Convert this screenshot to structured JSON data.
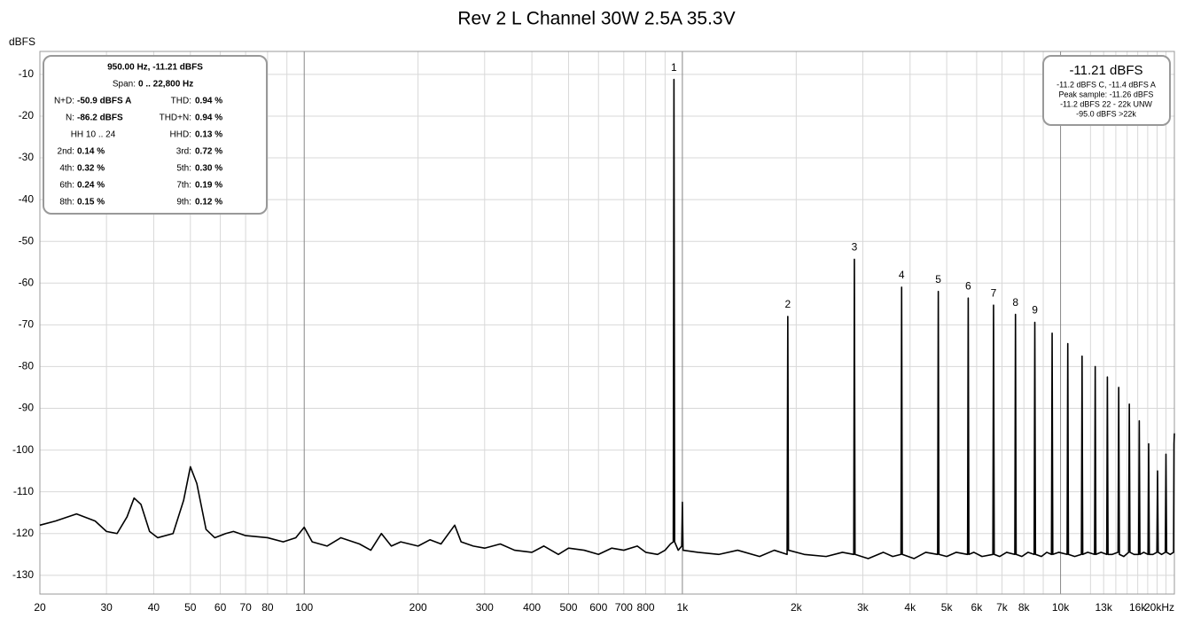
{
  "chart_data": {
    "type": "line",
    "title": "Rev 2 L Channel 30W 2.5A 35.3V",
    "y_label": "dBFS",
    "log_x": true,
    "grid": true,
    "color": "#000000",
    "xlim": [
      20,
      20000
    ],
    "ylim": [
      -134.5,
      -4.5
    ],
    "yticks": [
      -10,
      -20,
      -30,
      -40,
      -50,
      -60,
      -70,
      -80,
      -90,
      -100,
      -110,
      -120,
      -130
    ],
    "xticks": [
      20,
      30,
      40,
      50,
      60,
      70,
      80,
      100,
      200,
      300,
      400,
      500,
      600,
      700,
      800,
      {
        "value": 1000,
        "label": "1k"
      },
      {
        "value": 2000,
        "label": "2k"
      },
      {
        "value": 3000,
        "label": "3k"
      },
      {
        "value": 4000,
        "label": "4k"
      },
      {
        "value": 5000,
        "label": "5k"
      },
      {
        "value": 6000,
        "label": "6k"
      },
      {
        "value": 7000,
        "label": "7k"
      },
      {
        "value": 8000,
        "label": "8k"
      },
      {
        "value": 10000,
        "label": "10k"
      },
      {
        "value": 13000,
        "label": "13k"
      },
      {
        "value": 16000,
        "label": "16k"
      },
      {
        "value": 20000,
        "label": "20kHz"
      }
    ],
    "xminor": [
      90,
      900,
      9000,
      12000,
      14000,
      15000,
      17000,
      18000,
      19000
    ],
    "x": [
      20,
      22,
      25,
      28,
      30,
      32,
      34,
      35.5,
      37,
      39,
      41,
      45,
      48,
      50,
      52,
      55,
      58,
      62,
      65,
      70,
      80,
      88,
      95,
      100,
      105,
      115,
      125,
      140,
      150,
      160,
      170,
      180,
      200,
      215,
      230,
      250,
      260,
      280,
      300,
      330,
      360,
      400,
      430,
      470,
      500,
      550,
      600,
      650,
      700,
      760,
      800,
      860,
      900,
      930,
      946,
      950,
      954,
      975,
      996,
      1000,
      1004,
      1100,
      1250,
      1400,
      1600,
      1750,
      1892,
      1900,
      1908,
      2100,
      2400,
      2650,
      2839,
      2850,
      2861,
      3100,
      3400,
      3600,
      3785,
      3800,
      3815,
      4100,
      4400,
      4731,
      4750,
      4769,
      5000,
      5300,
      5677,
      5700,
      5723,
      5900,
      6200,
      6623,
      6650,
      6677,
      6900,
      7200,
      7570,
      7600,
      7630,
      7900,
      8200,
      8516,
      8550,
      8584,
      8900,
      9200,
      9462,
      9500,
      9538,
      9900,
      10408,
      10450,
      10492,
      10900,
      11354,
      11400,
      11446,
      11800,
      12300,
      12350,
      12400,
      12800,
      13247,
      13300,
      13353,
      13700,
      14193,
      14250,
      14307,
      14700,
      15139,
      15200,
      15261,
      15650,
      16085,
      16150,
      16215,
      16600,
      17032,
      17100,
      17168,
      17550,
      17978,
      18050,
      18122,
      18500,
      18924,
      19000,
      19076,
      19500,
      19900,
      19950,
      20000
    ],
    "values": [
      -118,
      -117,
      -115.3,
      -117,
      -119.5,
      -120,
      -116,
      -111.5,
      -113,
      -119.5,
      -121,
      -120,
      -112,
      -104,
      -108,
      -119,
      -121,
      -120,
      -119.5,
      -120.5,
      -121,
      -122,
      -121,
      -118.5,
      -122,
      -123,
      -121,
      -122.5,
      -124,
      -120,
      -123,
      -122,
      -123,
      -121.5,
      -122.5,
      -118,
      -122,
      -123,
      -123.5,
      -122.5,
      -124,
      -124.5,
      -123,
      -125,
      -123.5,
      -124,
      -125,
      -123.5,
      -124,
      -123,
      -124.5,
      -125,
      -124,
      -122.5,
      -122,
      -11.21,
      -122,
      -124,
      -123,
      -112.5,
      -124,
      -124.5,
      -125,
      -124,
      -125.5,
      -124,
      -125,
      -68,
      -124,
      -125,
      -125.5,
      -124.5,
      -125,
      -54.3,
      -125,
      -126,
      -124.5,
      -125.5,
      -125,
      -61,
      -125,
      -126,
      -124.5,
      -125,
      -62,
      -125,
      -125.5,
      -124.5,
      -125,
      -63.6,
      -125,
      -124.5,
      -125.5,
      -125,
      -65.3,
      -125,
      -125.5,
      -124.5,
      -125,
      -67.5,
      -125,
      -125.5,
      -124.5,
      -125,
      -69.4,
      -125,
      -125.5,
      -124.5,
      -125,
      -72,
      -125,
      -124.5,
      -125,
      -74.5,
      -125,
      -125.5,
      -125,
      -77.5,
      -125,
      -124.5,
      -125,
      -80,
      -125,
      -124.5,
      -125,
      -82.5,
      -125,
      -125,
      -124.5,
      -85,
      -125,
      -125.5,
      -124.5,
      -89,
      -124.5,
      -125,
      -125,
      -93,
      -125,
      -124.5,
      -125,
      -98.5,
      -125,
      -125,
      -124.5,
      -105,
      -124.5,
      -125,
      -124.5,
      -101,
      -124.5,
      -125,
      -124.5,
      -98.5,
      -96
    ],
    "annotations": [
      {
        "text": "1",
        "x": 950,
        "y": -11.21
      },
      {
        "text": "2",
        "x": 1900,
        "y": -68
      },
      {
        "text": "3",
        "x": 2850,
        "y": -54.3
      },
      {
        "text": "4",
        "x": 3800,
        "y": -61
      },
      {
        "text": "5",
        "x": 4750,
        "y": -62
      },
      {
        "text": "6",
        "x": 5700,
        "y": -63.6
      },
      {
        "text": "7",
        "x": 6650,
        "y": -65.3
      },
      {
        "text": "8",
        "x": 7600,
        "y": -67.5
      },
      {
        "text": "9",
        "x": 8550,
        "y": -69.4
      }
    ],
    "info_box": {
      "header": "950.00 Hz, -11.21 dBFS",
      "span_label": "Span:",
      "span_value": "0 .. 22,800 Hz",
      "rows": [
        {
          "left": {
            "label": "N+D:",
            "value": "-50.9 dBFS A"
          },
          "right": {
            "label": "THD:",
            "value": "0.94 %"
          }
        },
        {
          "left": {
            "label": "N:",
            "value": "-86.2 dBFS"
          },
          "right": {
            "label": "THD+N:",
            "value": "0.94 %"
          }
        },
        {
          "left": {
            "label": "HH 10 .. 24"
          },
          "right": {
            "label": "HHD:",
            "value": "0.13 %"
          }
        },
        {
          "left": {
            "label": "2nd:",
            "value": "0.14 %"
          },
          "right": {
            "label": "3rd:",
            "value": "0.72 %"
          }
        },
        {
          "left": {
            "label": "4th:",
            "value": "0.32 %"
          },
          "right": {
            "label": "5th:",
            "value": "0.30 %"
          }
        },
        {
          "left": {
            "label": "6th:",
            "value": "0.24 %"
          },
          "right": {
            "label": "7th:",
            "value": "0.19 %"
          }
        },
        {
          "left": {
            "label": "8th:",
            "value": "0.15 %"
          },
          "right": {
            "label": "9th:",
            "value": "0.12 %"
          }
        }
      ]
    },
    "level_box": {
      "headline": "-11.21 dBFS",
      "lines": [
        "-11.2 dBFS C, -11.4 dBFS A",
        "Peak sample: -11.26 dBFS",
        "-11.2 dBFS 22 - 22k UNW",
        "-95.0 dBFS >22k"
      ]
    }
  }
}
